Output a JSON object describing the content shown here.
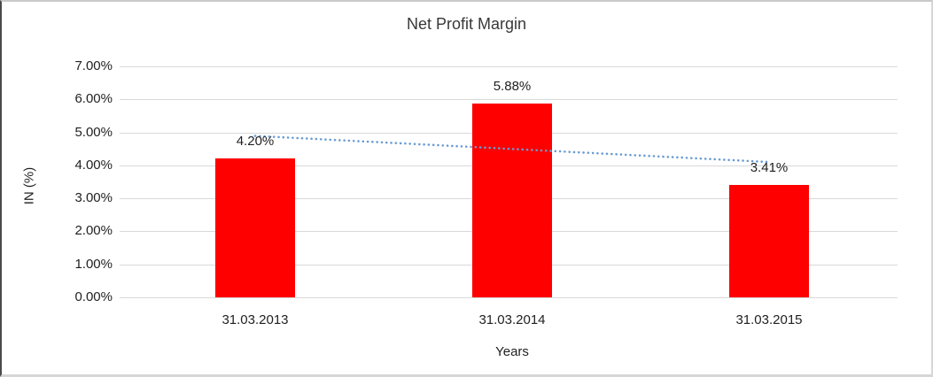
{
  "chart_data": {
    "type": "bar",
    "title": "Net Profit Margin",
    "categories": [
      "31.03.2013",
      "31.03.2014",
      "31.03.2015"
    ],
    "values": [
      4.2,
      5.88,
      3.41
    ],
    "data_labels": [
      "4.20%",
      "5.88%",
      "3.41%"
    ],
    "xlabel": "Years",
    "ylabel": "IN (%)",
    "ylim": [
      0,
      7
    ],
    "ytick_step": 1,
    "ytick_labels": [
      "0.00%",
      "1.00%",
      "2.00%",
      "3.00%",
      "4.00%",
      "5.00%",
      "6.00%",
      "7.00%"
    ],
    "grid": true,
    "legend": "none",
    "bar_color": "#ff0000",
    "gridline_color": "#d9d9d9",
    "trendline": {
      "type": "linear",
      "style": "dotted",
      "color": "#699bd3",
      "endpoint_values": [
        4.89,
        4.1
      ]
    }
  }
}
